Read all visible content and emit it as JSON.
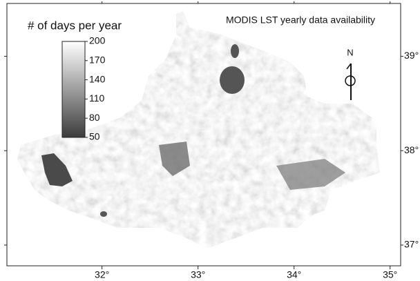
{
  "title": "MODIS LST yearly data availability",
  "colorbar": {
    "label": "# of days per year",
    "range": [
      50,
      200
    ],
    "ticks": [
      200,
      170,
      140,
      110,
      80,
      50
    ],
    "colors": [
      "#3c3c3c",
      "#ffffff"
    ]
  },
  "map": {
    "xlim": [
      31.01,
      35.11
    ],
    "ylim": [
      36.78,
      39.56
    ],
    "xticks": [
      {
        "value": 32,
        "label": "32°"
      },
      {
        "value": 33,
        "label": "33°"
      },
      {
        "value": 34,
        "label": "34°"
      },
      {
        "value": 35,
        "label": "35°"
      }
    ],
    "yticks": [
      {
        "value": 37,
        "label": "37°"
      },
      {
        "value": 38,
        "label": "38°"
      },
      {
        "value": 39,
        "label": "39°"
      }
    ]
  },
  "north": "N"
}
